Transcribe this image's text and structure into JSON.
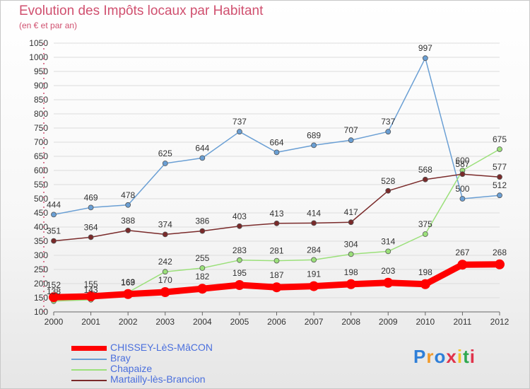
{
  "title": "Evolution des Impôts locaux par Habitant",
  "subtitle": "(en € et par an)",
  "brand": {
    "text": "Proxiti",
    "letters": [
      "P",
      "r",
      "o",
      "x",
      "i",
      "t",
      "i"
    ],
    "colors": [
      "#2f7fd8",
      "#f29b2b",
      "#2f7fd8",
      "#e0334b",
      "#f2c42b",
      "#2fa84f",
      "#e0334b"
    ]
  },
  "chart_data": {
    "type": "line",
    "x": [
      "2000",
      "2001",
      "2002",
      "2003",
      "2004",
      "2005",
      "2006",
      "2007",
      "2008",
      "2009",
      "2010",
      "2011",
      "2012"
    ],
    "ylim": [
      100,
      1050
    ],
    "yticks": [
      100,
      150,
      200,
      250,
      300,
      350,
      400,
      450,
      500,
      550,
      600,
      650,
      700,
      750,
      800,
      850,
      900,
      950,
      1000,
      1050
    ],
    "grid": "horizontal",
    "legend_position": "bottom-left",
    "series": [
      {
        "name": "CHISSEY-LèS-MâCON",
        "color": "#ff0000",
        "values": [
          152,
          155,
          163,
          170,
          182,
          195,
          187,
          191,
          198,
          203,
          198,
          267,
          268
        ]
      },
      {
        "name": "Bray",
        "color": "#6a9fd4",
        "values": [
          444,
          469,
          478,
          625,
          644,
          737,
          664,
          689,
          707,
          737,
          997,
          500,
          512
        ]
      },
      {
        "name": "Chapaize",
        "color": "#9be07a",
        "values": [
          138,
          143,
          169,
          242,
          255,
          283,
          281,
          284,
          304,
          314,
          375,
          600,
          675
        ]
      },
      {
        "name": "Martailly-lès-Brancion",
        "color": "#7a2a2a",
        "values": [
          351,
          364,
          388,
          374,
          386,
          403,
          413,
          414,
          417,
          528,
          568,
          587,
          577
        ]
      }
    ]
  }
}
